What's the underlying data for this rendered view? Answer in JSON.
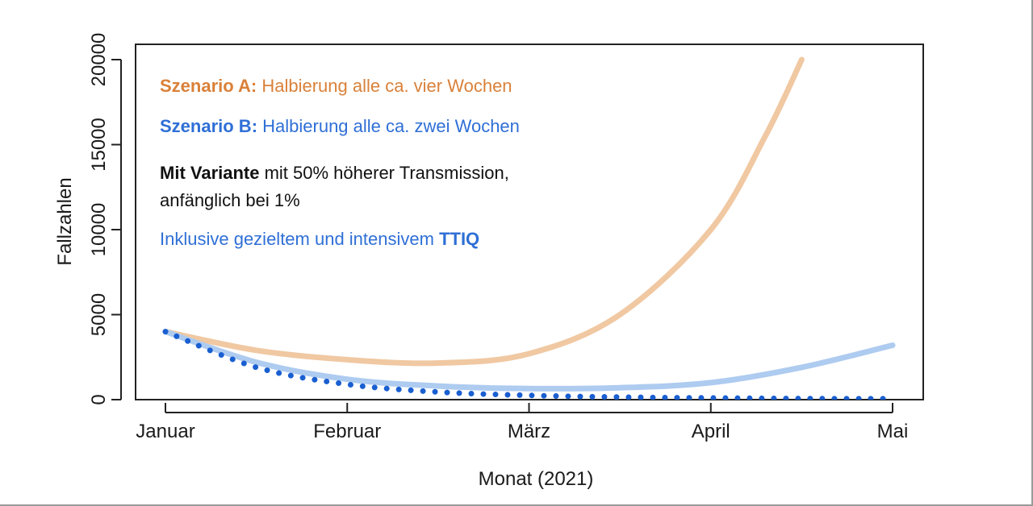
{
  "chart_data": {
    "type": "line",
    "title": "",
    "xlabel": "Monat (2021)",
    "ylabel": "Fallzahlen",
    "x_ticks": [
      "Januar",
      "Februar",
      "März",
      "April",
      "Mai"
    ],
    "y_ticks": [
      "0",
      "5000",
      "10000",
      "15000",
      "20000"
    ],
    "xlim": [
      0,
      4
    ],
    "ylim": [
      0,
      20000
    ],
    "grid": false,
    "series": [
      {
        "key": "A",
        "color": "#f0c8a2",
        "style": "solid",
        "x": [
          0,
          0.5,
          1,
          1.5,
          2,
          2.5,
          3,
          3.3,
          3.5
        ],
        "values": [
          4000,
          2900,
          2350,
          2150,
          2700,
          5000,
          10000,
          15500,
          20000
        ]
      },
      {
        "key": "B",
        "color": "#aecbf0",
        "style": "solid",
        "x": [
          0,
          0.5,
          1,
          1.5,
          2,
          2.5,
          3,
          3.5,
          4
        ],
        "values": [
          4000,
          2200,
          1200,
          800,
          650,
          700,
          1000,
          1900,
          3200
        ]
      },
      {
        "key": "TTIQ",
        "color": "#1a5fd1",
        "style": "dotted",
        "x": [
          0,
          0.5,
          1,
          1.5,
          2,
          2.5,
          3,
          3.5,
          4
        ],
        "values": [
          4000,
          1900,
          900,
          450,
          250,
          150,
          100,
          60,
          50
        ]
      }
    ],
    "legend": {
      "placement": "top-left",
      "entries": [
        {
          "key": "A",
          "bold": "Szenario A:",
          "text": " Halbierung alle ca. vier Wochen",
          "color": "#d9813a"
        },
        {
          "key": "B",
          "bold": "Szenario B:",
          "text": " Halbierung alle ca. zwei Wochen",
          "color": "#2f6fd6"
        },
        {
          "key": "variant",
          "bold": "Mit Variante",
          "text": " mit 50% höherer Transmission,",
          "text2": "anfänglich bei 1%",
          "color": "#111111"
        },
        {
          "key": "TTIQ",
          "bold": "TTIQ",
          "prefix": "Inklusive gezieltem und intensivem ",
          "color": "#2f6fd6"
        }
      ]
    }
  }
}
